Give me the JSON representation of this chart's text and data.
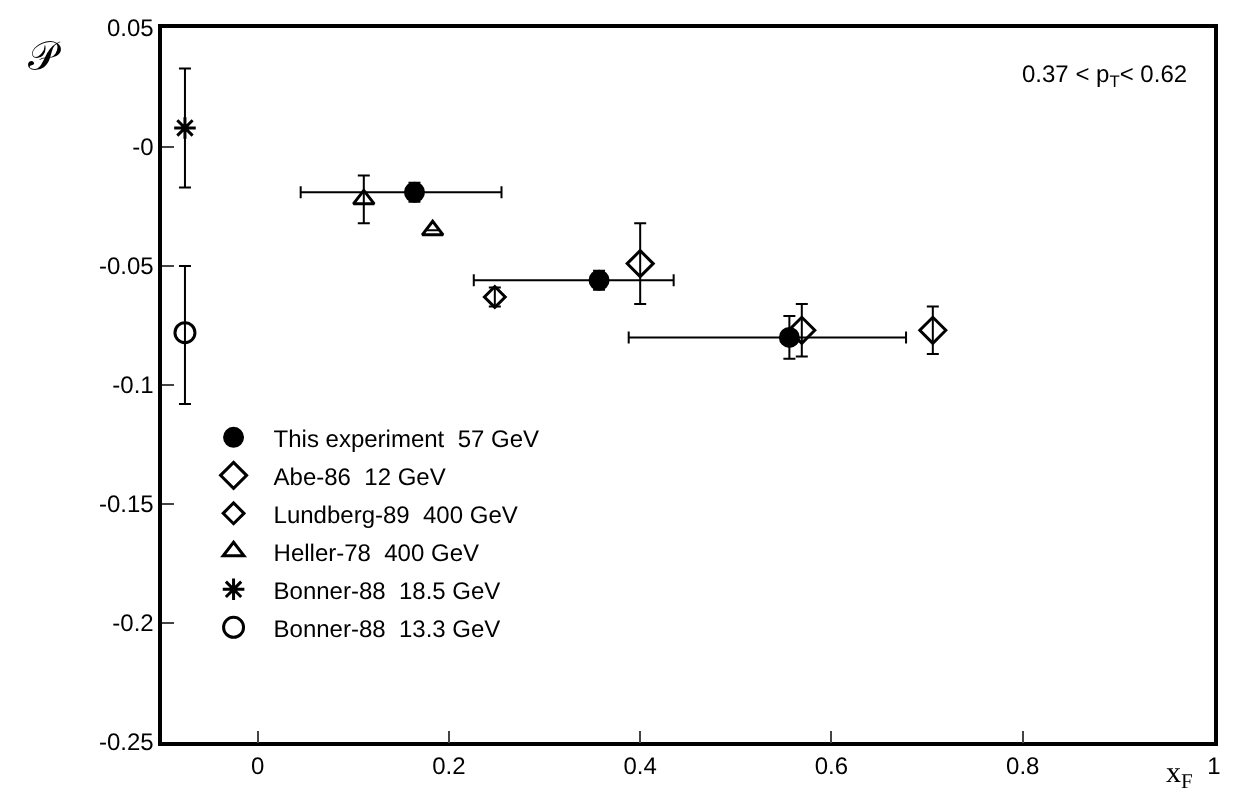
{
  "chart_data": {
    "type": "scatter",
    "xlabel": "x$_{F}$",
    "ylabel": "𝒫",
    "annotations": [
      "0.37 < p$_{T}$< 0.62"
    ],
    "xlim": [
      -0.1,
      1.0
    ],
    "xticks": [
      0,
      0.2,
      0.4,
      0.6,
      0.8,
      1
    ],
    "ylim": [
      -0.25,
      0.05
    ],
    "yticks": [
      {
        "value": -0.25,
        "label": "-0.25"
      },
      {
        "value": -0.2,
        "label": "-0.2"
      },
      {
        "value": -0.15,
        "label": "-0.15"
      },
      {
        "value": -0.1,
        "label": "-0.1"
      },
      {
        "value": -0.05,
        "label": "-0.05"
      },
      {
        "value": 0,
        "label": "-0"
      },
      {
        "value": 0.05,
        "label": "0.05"
      }
    ],
    "legend": "bottom left",
    "series": [
      {
        "name": "This experiment  57 GeV",
        "color": "#000000",
        "marker": "circle",
        "x": [
          0.164,
          0.357,
          0.556
        ],
        "values": [
          -0.019,
          -0.056,
          -0.08
        ],
        "errors": [
          0.004,
          0.004,
          0.009
        ],
        "xerrors": [
          [
            0.045,
            0.255
          ],
          [
            0.226,
            0.435
          ],
          [
            0.388,
            0.678
          ]
        ]
      },
      {
        "name": "Abe-86  12 GeV",
        "color": "#000000",
        "marker": "diamond-open",
        "x": [
          0.4,
          0.569,
          0.706
        ],
        "values": [
          -0.049,
          -0.077,
          -0.077
        ],
        "errors": [
          0.017,
          0.011,
          0.01
        ]
      },
      {
        "name": "Lundberg-89  400 GeV",
        "color": "#000000",
        "marker": "diamond",
        "x": [
          0.248
        ],
        "values": [
          -0.063
        ],
        "errors": [
          0.004
        ]
      },
      {
        "name": "Heller-78  400 GeV",
        "color": "#000000",
        "marker": "triangle-open",
        "x": [
          0.111,
          0.183
        ],
        "values": [
          -0.022,
          -0.035
        ],
        "errors": [
          0.01,
          null
        ]
      },
      {
        "name": "Bonner-88  18.5 GeV",
        "color": "#000000",
        "marker": "cross",
        "x": [
          -0.076
        ],
        "values": [
          0.008
        ],
        "errors": [
          0.025
        ]
      },
      {
        "name": "Bonner-88  13.3 GeV",
        "color": "#000000",
        "marker": "circle-open",
        "x": [
          -0.076
        ],
        "values": [
          -0.078
        ],
        "errors": [
          [
            -0.108,
            -0.05
          ]
        ]
      }
    ]
  }
}
